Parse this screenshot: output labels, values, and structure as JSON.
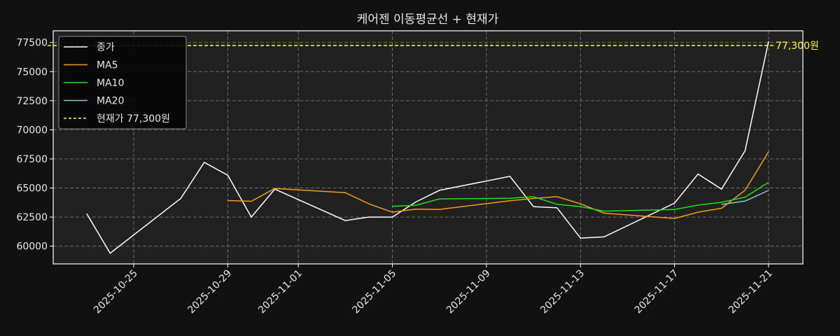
{
  "chart_data": {
    "type": "line",
    "title": "케어젠 이동평균선 + 현재가",
    "xlabel": "",
    "ylabel": "",
    "ylim": [
      58500,
      78500
    ],
    "xlim": [
      "2025-10-21T16:00",
      "2025-11-22T12:00"
    ],
    "grid": true,
    "legend_position": "upper left",
    "yticks": [
      60000,
      62500,
      65000,
      67500,
      70000,
      72500,
      75000,
      77500
    ],
    "ytick_labels": [
      "60000",
      "62500",
      "65000",
      "67500",
      "70000",
      "72500",
      "75000",
      "77500"
    ],
    "xticks": [
      "2025-10-25",
      "2025-10-29",
      "2025-11-01",
      "2025-11-05",
      "2025-11-09",
      "2025-11-13",
      "2025-11-17",
      "2025-11-21"
    ],
    "x": [
      "2025-10-23",
      "2025-10-24",
      "2025-10-27",
      "2025-10-28",
      "2025-10-29",
      "2025-10-30",
      "2025-10-31",
      "2025-11-03",
      "2025-11-04",
      "2025-11-05",
      "2025-11-06",
      "2025-11-07",
      "2025-11-10",
      "2025-11-11",
      "2025-11-12",
      "2025-11-13",
      "2025-11-14",
      "2025-11-17",
      "2025-11-18",
      "2025-11-19",
      "2025-11-20",
      "2025-11-21"
    ],
    "series": [
      {
        "name": "종가",
        "color": "#ffffff",
        "style": "solid",
        "values": [
          62800,
          59400,
          64100,
          67200,
          66100,
          62500,
          64900,
          62200,
          62500,
          62500,
          63800,
          64800,
          66000,
          63400,
          63300,
          60700,
          60800,
          63700,
          66200,
          64900,
          68200,
          77600
        ]
      },
      {
        "name": "MA5",
        "color": "#f39c12",
        "style": "solid",
        "values": [
          null,
          null,
          null,
          null,
          63920,
          63860,
          64960,
          64600,
          63640,
          62920,
          63180,
          63160,
          63900,
          64100,
          64260,
          63640,
          62840,
          62380,
          62920,
          63260,
          64800,
          68120
        ]
      },
      {
        "name": "MA10",
        "color": "#1be51b",
        "style": "solid",
        "values": [
          null,
          null,
          null,
          null,
          null,
          null,
          null,
          null,
          null,
          63420,
          63520,
          64060,
          64120,
          64250,
          63600,
          63400,
          63010,
          63150,
          63530,
          63770,
          64210,
          65490
        ]
      },
      {
        "name": "MA20",
        "color": "#8ec5e0",
        "style": "solid",
        "values": [
          null,
          null,
          null,
          null,
          null,
          null,
          null,
          null,
          null,
          null,
          null,
          null,
          null,
          null,
          null,
          null,
          null,
          null,
          null,
          63590,
          63870,
          64790
        ]
      }
    ],
    "hline": {
      "name": "현재가 77,300원",
      "value": 77300,
      "color": "#ffff33",
      "style": "dashed",
      "annotation": "77,300원"
    },
    "legend": [
      "종가",
      "MA5",
      "MA10",
      "MA20",
      "현재가 77,300원"
    ]
  },
  "colors": {
    "figure_bg": "#111111",
    "axes_bg": "#212121",
    "spine": "#ffffff",
    "grid": "#7a7a7a",
    "text": "#e6e6e6",
    "legend_bg": "#050505",
    "legend_border": "#8a8a8a"
  }
}
